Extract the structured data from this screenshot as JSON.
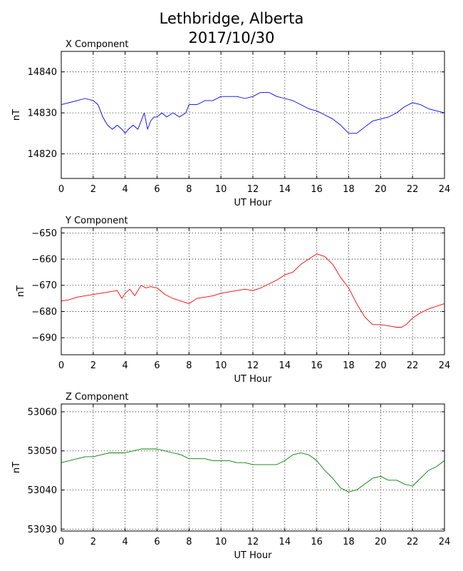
{
  "title_line1": "Lethbridge, Alberta",
  "title_line2": "2017/10/30",
  "chart_data": [
    {
      "type": "line",
      "title": "X Component",
      "xlabel": "UT Hour",
      "ylabel": "nT",
      "color": "#0000ff",
      "xlim": [
        0,
        24
      ],
      "ylim": [
        14814,
        14845
      ],
      "xticks": [
        0,
        2,
        4,
        6,
        8,
        10,
        12,
        14,
        16,
        18,
        20,
        22,
        24
      ],
      "yticks": [
        14820,
        14830,
        14840
      ],
      "grid": true,
      "x": [
        0,
        0.5,
        1,
        1.5,
        2,
        2.3,
        2.6,
        2.9,
        3.2,
        3.5,
        3.8,
        4.0,
        4.2,
        4.5,
        4.8,
        5.0,
        5.2,
        5.4,
        5.6,
        5.8,
        6.0,
        6.3,
        6.6,
        7.0,
        7.4,
        7.8,
        8.0,
        8.5,
        9.0,
        9.5,
        10,
        10.5,
        11,
        11.5,
        12,
        12.5,
        13,
        13.5,
        14,
        14.5,
        15,
        15.5,
        16,
        16.5,
        17,
        17.5,
        18,
        18.5,
        19,
        19.5,
        20,
        20.5,
        21,
        21.5,
        22,
        22.5,
        23,
        23.5,
        24
      ],
      "y": [
        14832,
        14832.5,
        14833,
        14833.5,
        14833,
        14832,
        14829,
        14827,
        14826,
        14827,
        14826,
        14825,
        14826,
        14827,
        14826,
        14828,
        14830,
        14826,
        14828,
        14829,
        14829,
        14830,
        14829,
        14830,
        14829,
        14830,
        14832,
        14832,
        14833,
        14833,
        14834,
        14834,
        14834,
        14833.5,
        14834,
        14835,
        14835,
        14834,
        14833.5,
        14833,
        14832,
        14831,
        14830.5,
        14829.5,
        14828.5,
        14827,
        14825,
        14825,
        14826.5,
        14828,
        14828.5,
        14829,
        14830,
        14831.5,
        14832.5,
        14832,
        14831,
        14830.5,
        14830
      ]
    },
    {
      "type": "line",
      "title": "Y Component",
      "xlabel": "UT Hour",
      "ylabel": "nT",
      "color": "#ff0000",
      "xlim": [
        0,
        24
      ],
      "ylim": [
        -696.5,
        -648
      ],
      "xticks": [
        0,
        2,
        4,
        6,
        8,
        10,
        12,
        14,
        16,
        18,
        20,
        22,
        24
      ],
      "yticks": [
        -650,
        -660,
        -670,
        -680,
        -690
      ],
      "tick_labels": [
        "−650",
        "−660",
        "−670",
        "−680",
        "−690"
      ],
      "grid": true,
      "x": [
        0,
        0.5,
        1,
        1.5,
        2,
        2.5,
        3,
        3.5,
        3.8,
        4.0,
        4.3,
        4.6,
        5.0,
        5.3,
        5.6,
        6.0,
        6.5,
        7.0,
        7.5,
        8.0,
        8.5,
        9.0,
        9.5,
        10,
        10.5,
        11,
        11.5,
        12,
        12.5,
        13,
        13.5,
        14,
        14.5,
        15,
        15.5,
        16,
        16.5,
        17,
        17.5,
        18,
        18.5,
        19,
        19.5,
        20,
        20.5,
        21,
        21.3,
        21.6,
        22,
        22.5,
        23,
        23.5,
        24
      ],
      "y": [
        -676,
        -675.5,
        -674.5,
        -674,
        -673.5,
        -673,
        -672.5,
        -672,
        -675,
        -673,
        -671.5,
        -674,
        -670,
        -671,
        -670.5,
        -671,
        -673.5,
        -675,
        -676,
        -677,
        -675,
        -674.5,
        -674,
        -673,
        -672.5,
        -672,
        -671.5,
        -672,
        -671,
        -669.5,
        -668,
        -666,
        -665,
        -662,
        -660,
        -658,
        -659,
        -662,
        -667,
        -671,
        -677,
        -682,
        -685,
        -685,
        -685.5,
        -686,
        -686,
        -685,
        -682.5,
        -680.5,
        -679,
        -678,
        -677
      ]
    },
    {
      "type": "line",
      "title": "Z Component",
      "xlabel": "UT Hour",
      "ylabel": "nT",
      "color": "#008000",
      "xlim": [
        0,
        24
      ],
      "ylim": [
        53029.5,
        53062
      ],
      "xticks": [
        0,
        2,
        4,
        6,
        8,
        10,
        12,
        14,
        16,
        18,
        20,
        22,
        24
      ],
      "yticks": [
        53030,
        53040,
        53050,
        53060
      ],
      "grid": true,
      "x": [
        0,
        0.5,
        1,
        1.5,
        2,
        2.5,
        3,
        3.5,
        4,
        4.5,
        5,
        5.5,
        6,
        6.5,
        7,
        7.5,
        8,
        8.5,
        9,
        9.5,
        10,
        10.5,
        11,
        11.5,
        12,
        12.5,
        13,
        13.5,
        14,
        14.5,
        15,
        15.5,
        16,
        16.5,
        17,
        17.5,
        18,
        18.5,
        19,
        19.5,
        20,
        20.5,
        21,
        21.5,
        22,
        22.5,
        23,
        23.5,
        24
      ],
      "y": [
        53047,
        53047.5,
        53048,
        53048.5,
        53048.5,
        53049,
        53049.5,
        53049.5,
        53049.5,
        53050,
        53050.5,
        53050.5,
        53050.5,
        53050,
        53049.5,
        53049,
        53048,
        53048,
        53048,
        53047.5,
        53047.5,
        53047.5,
        53047,
        53047,
        53046.5,
        53046.5,
        53046.5,
        53046.5,
        53047.5,
        53049,
        53049.5,
        53049,
        53047.5,
        53045,
        53043,
        53040.5,
        53039.5,
        53040,
        53041.5,
        53043,
        53043.5,
        53042.5,
        53042.5,
        53041.5,
        53041,
        53043,
        53045,
        53046,
        53047.5
      ]
    }
  ]
}
